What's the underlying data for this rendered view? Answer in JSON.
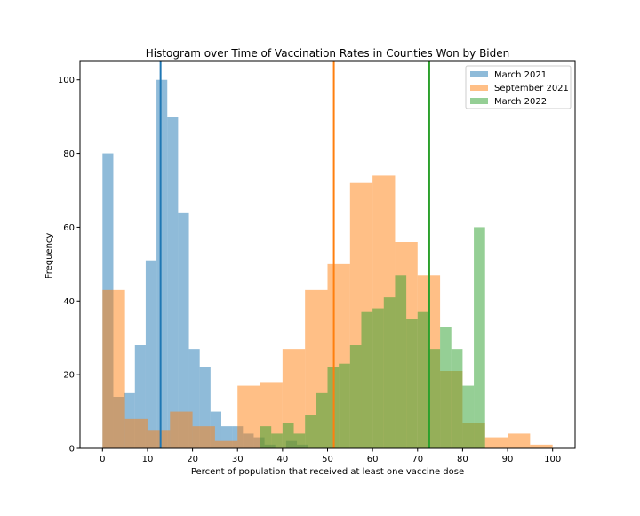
{
  "chart_data": {
    "type": "bar",
    "title": "Histogram over Time of Vaccination Rates in Counties Won by Biden",
    "xlabel": "Percent of population that received at least one vaccine dose",
    "ylabel": "Frequency",
    "xlim": [
      -5,
      105
    ],
    "ylim": [
      0,
      105
    ],
    "xticks": [
      0,
      10,
      20,
      30,
      40,
      50,
      60,
      70,
      80,
      90,
      100
    ],
    "yticks": [
      0,
      20,
      40,
      60,
      80,
      100
    ],
    "grid": false,
    "legend_position": "upper right",
    "series": [
      {
        "name": "March 2021",
        "color": "#1f77b4",
        "opacity": 0.5,
        "bins": [
          [
            0.0,
            2.4,
            80
          ],
          [
            2.4,
            4.8,
            14
          ],
          [
            4.8,
            7.2,
            15
          ],
          [
            7.2,
            9.6,
            28
          ],
          [
            9.6,
            12.0,
            51
          ],
          [
            12.0,
            14.4,
            100
          ],
          [
            14.4,
            16.8,
            90
          ],
          [
            16.8,
            19.2,
            64
          ],
          [
            19.2,
            21.6,
            27
          ],
          [
            21.6,
            24.0,
            22
          ],
          [
            24.0,
            26.4,
            10
          ],
          [
            26.4,
            28.8,
            6
          ],
          [
            28.8,
            31.2,
            6
          ],
          [
            31.2,
            33.6,
            4
          ],
          [
            33.6,
            36.0,
            3
          ],
          [
            36.0,
            38.4,
            1
          ],
          [
            38.4,
            40.8,
            0
          ],
          [
            40.8,
            43.2,
            2
          ],
          [
            43.2,
            45.6,
            1
          ],
          [
            45.6,
            48.0,
            0
          ],
          [
            48.0,
            50.4,
            0
          ]
        ],
        "mean": 12.9
      },
      {
        "name": "September 2021",
        "color": "#ff7f0e",
        "opacity": 0.5,
        "bins": [
          [
            0,
            5,
            43
          ],
          [
            5,
            10,
            8
          ],
          [
            10,
            15,
            5
          ],
          [
            15,
            20,
            10
          ],
          [
            20,
            25,
            6
          ],
          [
            25,
            30,
            2
          ],
          [
            30,
            35,
            17
          ],
          [
            35,
            40,
            18
          ],
          [
            40,
            45,
            27
          ],
          [
            45,
            50,
            43
          ],
          [
            50,
            55,
            50
          ],
          [
            55,
            60,
            72
          ],
          [
            60,
            65,
            74
          ],
          [
            65,
            70,
            56
          ],
          [
            70,
            75,
            47
          ],
          [
            75,
            80,
            21
          ],
          [
            80,
            85,
            7
          ],
          [
            85,
            90,
            3
          ],
          [
            90,
            95,
            4
          ],
          [
            95,
            100,
            1
          ]
        ],
        "mean": 51.4
      },
      {
        "name": "March 2022",
        "color": "#2ca02c",
        "opacity": 0.5,
        "bins": [
          [
            35.0,
            37.5,
            6
          ],
          [
            37.5,
            40.0,
            4
          ],
          [
            40.0,
            42.5,
            7
          ],
          [
            42.5,
            45.0,
            4
          ],
          [
            45.0,
            47.5,
            9
          ],
          [
            47.5,
            50.0,
            15
          ],
          [
            50.0,
            52.5,
            22
          ],
          [
            52.5,
            55.0,
            23
          ],
          [
            55.0,
            57.5,
            28
          ],
          [
            57.5,
            60.0,
            37
          ],
          [
            60.0,
            62.5,
            38
          ],
          [
            62.5,
            65.0,
            41
          ],
          [
            65.0,
            67.5,
            47
          ],
          [
            67.5,
            70.0,
            35
          ],
          [
            70.0,
            72.5,
            37
          ],
          [
            72.5,
            75.0,
            27
          ],
          [
            75.0,
            77.5,
            33
          ],
          [
            77.5,
            80.0,
            27
          ],
          [
            80.0,
            82.5,
            17
          ],
          [
            82.5,
            85.0,
            60
          ]
        ],
        "mean": 72.6
      }
    ]
  }
}
